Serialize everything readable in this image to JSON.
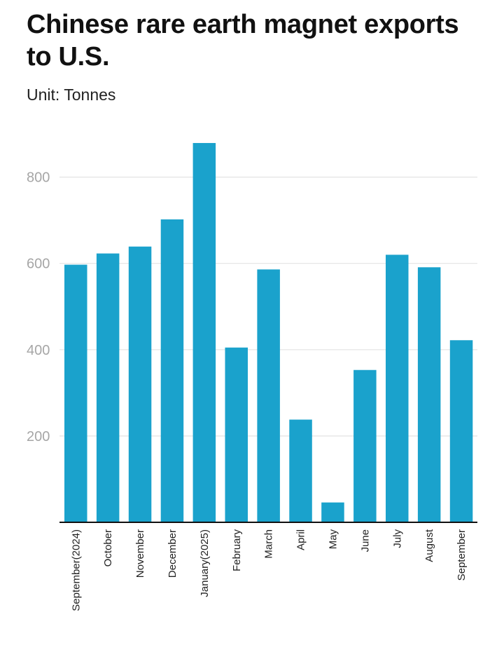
{
  "title": "Chinese rare earth magnet exports to U.S.",
  "subtitle": "Unit: Tonnes",
  "colors": {
    "bar": "#1aa2cc",
    "grid": "#e3e3e3",
    "axis": "#111111",
    "tick_text": "#a6a6a6"
  },
  "chart_data": {
    "type": "bar",
    "title": "Chinese rare earth magnet exports to U.S.",
    "subtitle": "Unit: Tonnes",
    "xlabel": "",
    "ylabel": "",
    "categories": [
      "September(2024)",
      "October",
      "November",
      "December",
      "January(2025)",
      "February",
      "March",
      "April",
      "May",
      "June",
      "July",
      "August",
      "September"
    ],
    "values": [
      597,
      623,
      639,
      702,
      879,
      405,
      586,
      238,
      46,
      353,
      620,
      591,
      422
    ],
    "yticks": [
      200,
      400,
      600,
      800
    ],
    "ylim": [
      0,
      900
    ],
    "grid": true,
    "legend": "none"
  }
}
